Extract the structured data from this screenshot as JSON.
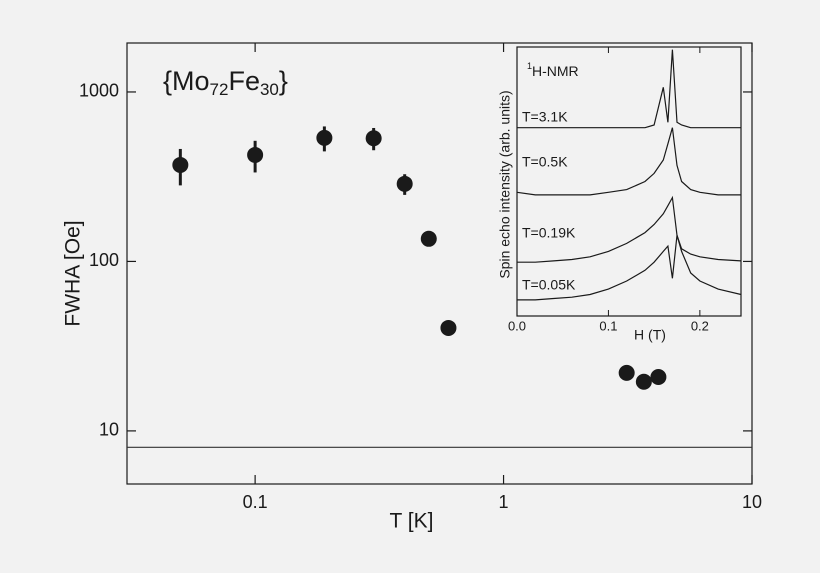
{
  "chart_data": [
    {
      "type": "scatter",
      "annotation_parts": [
        "{Mo",
        "72",
        "Fe",
        "30",
        "}"
      ],
      "xlabel": "T [K]",
      "ylabel": "FWHA  [Oe]",
      "x": [
        0.05,
        0.1,
        0.19,
        0.3,
        0.4,
        0.5,
        0.6,
        3.13,
        3.67,
        4.2
      ],
      "values": [
        371,
        425,
        536,
        533,
        287,
        136,
        40.5,
        22,
        19.5,
        20.8
      ],
      "yerr": [
        90,
        90,
        90,
        80,
        40,
        10,
        3,
        2,
        1.5,
        1.5
      ],
      "color": "#1a1a1a",
      "xlog": true,
      "ylog": true,
      "xlim": [
        0.0305,
        10
      ],
      "ylim": [
        4.86,
        1945
      ],
      "xticks": [
        0.1,
        1,
        10
      ],
      "yticks": [
        10,
        100,
        1000
      ],
      "hline": 8
    },
    {
      "type": "line",
      "annotation_parts": [
        "1",
        "H-NMR"
      ],
      "xlabel": "H  (T)",
      "ylabel": "Spin echo intensity  (arb. units)",
      "x": [
        0,
        0.02,
        0.04,
        0.06,
        0.08,
        0.1,
        0.12,
        0.14,
        0.15,
        0.16,
        0.165,
        0.17,
        0.175,
        0.18,
        0.19,
        0.2,
        0.22,
        0.245
      ],
      "series": [
        {
          "name": "T=3.1K",
          "color": "#1a1a1a",
          "values": [
            70,
            70,
            70,
            70,
            70,
            70,
            70,
            70,
            71,
            85,
            72,
            99,
            72,
            71,
            70,
            70,
            70,
            70
          ]
        },
        {
          "name": "T=0.5K",
          "color": "#1a1a1a",
          "values": [
            46,
            45,
            45,
            45,
            45,
            46,
            47,
            50,
            53,
            58,
            64,
            70,
            56,
            50,
            47,
            46,
            45,
            45
          ]
        },
        {
          "name": "T=0.19K",
          "color": "#1a1a1a",
          "values": [
            20,
            20,
            20.5,
            21,
            22,
            24,
            27,
            31,
            34,
            38,
            41,
            44,
            30,
            25,
            23,
            22,
            21,
            20.5
          ]
        },
        {
          "name": "T=0.05K",
          "color": "#1a1a1a",
          "values": [
            6,
            6,
            6.5,
            7,
            8,
            10,
            13,
            17,
            20,
            24,
            26,
            14,
            30,
            24,
            16,
            13,
            10,
            8
          ]
        }
      ],
      "xlim": [
        0,
        0.245
      ],
      "ylim": [
        0,
        100
      ],
      "xticks": [
        {
          "value": 0,
          "label": "0.0"
        },
        0.1,
        0.2
      ]
    }
  ]
}
